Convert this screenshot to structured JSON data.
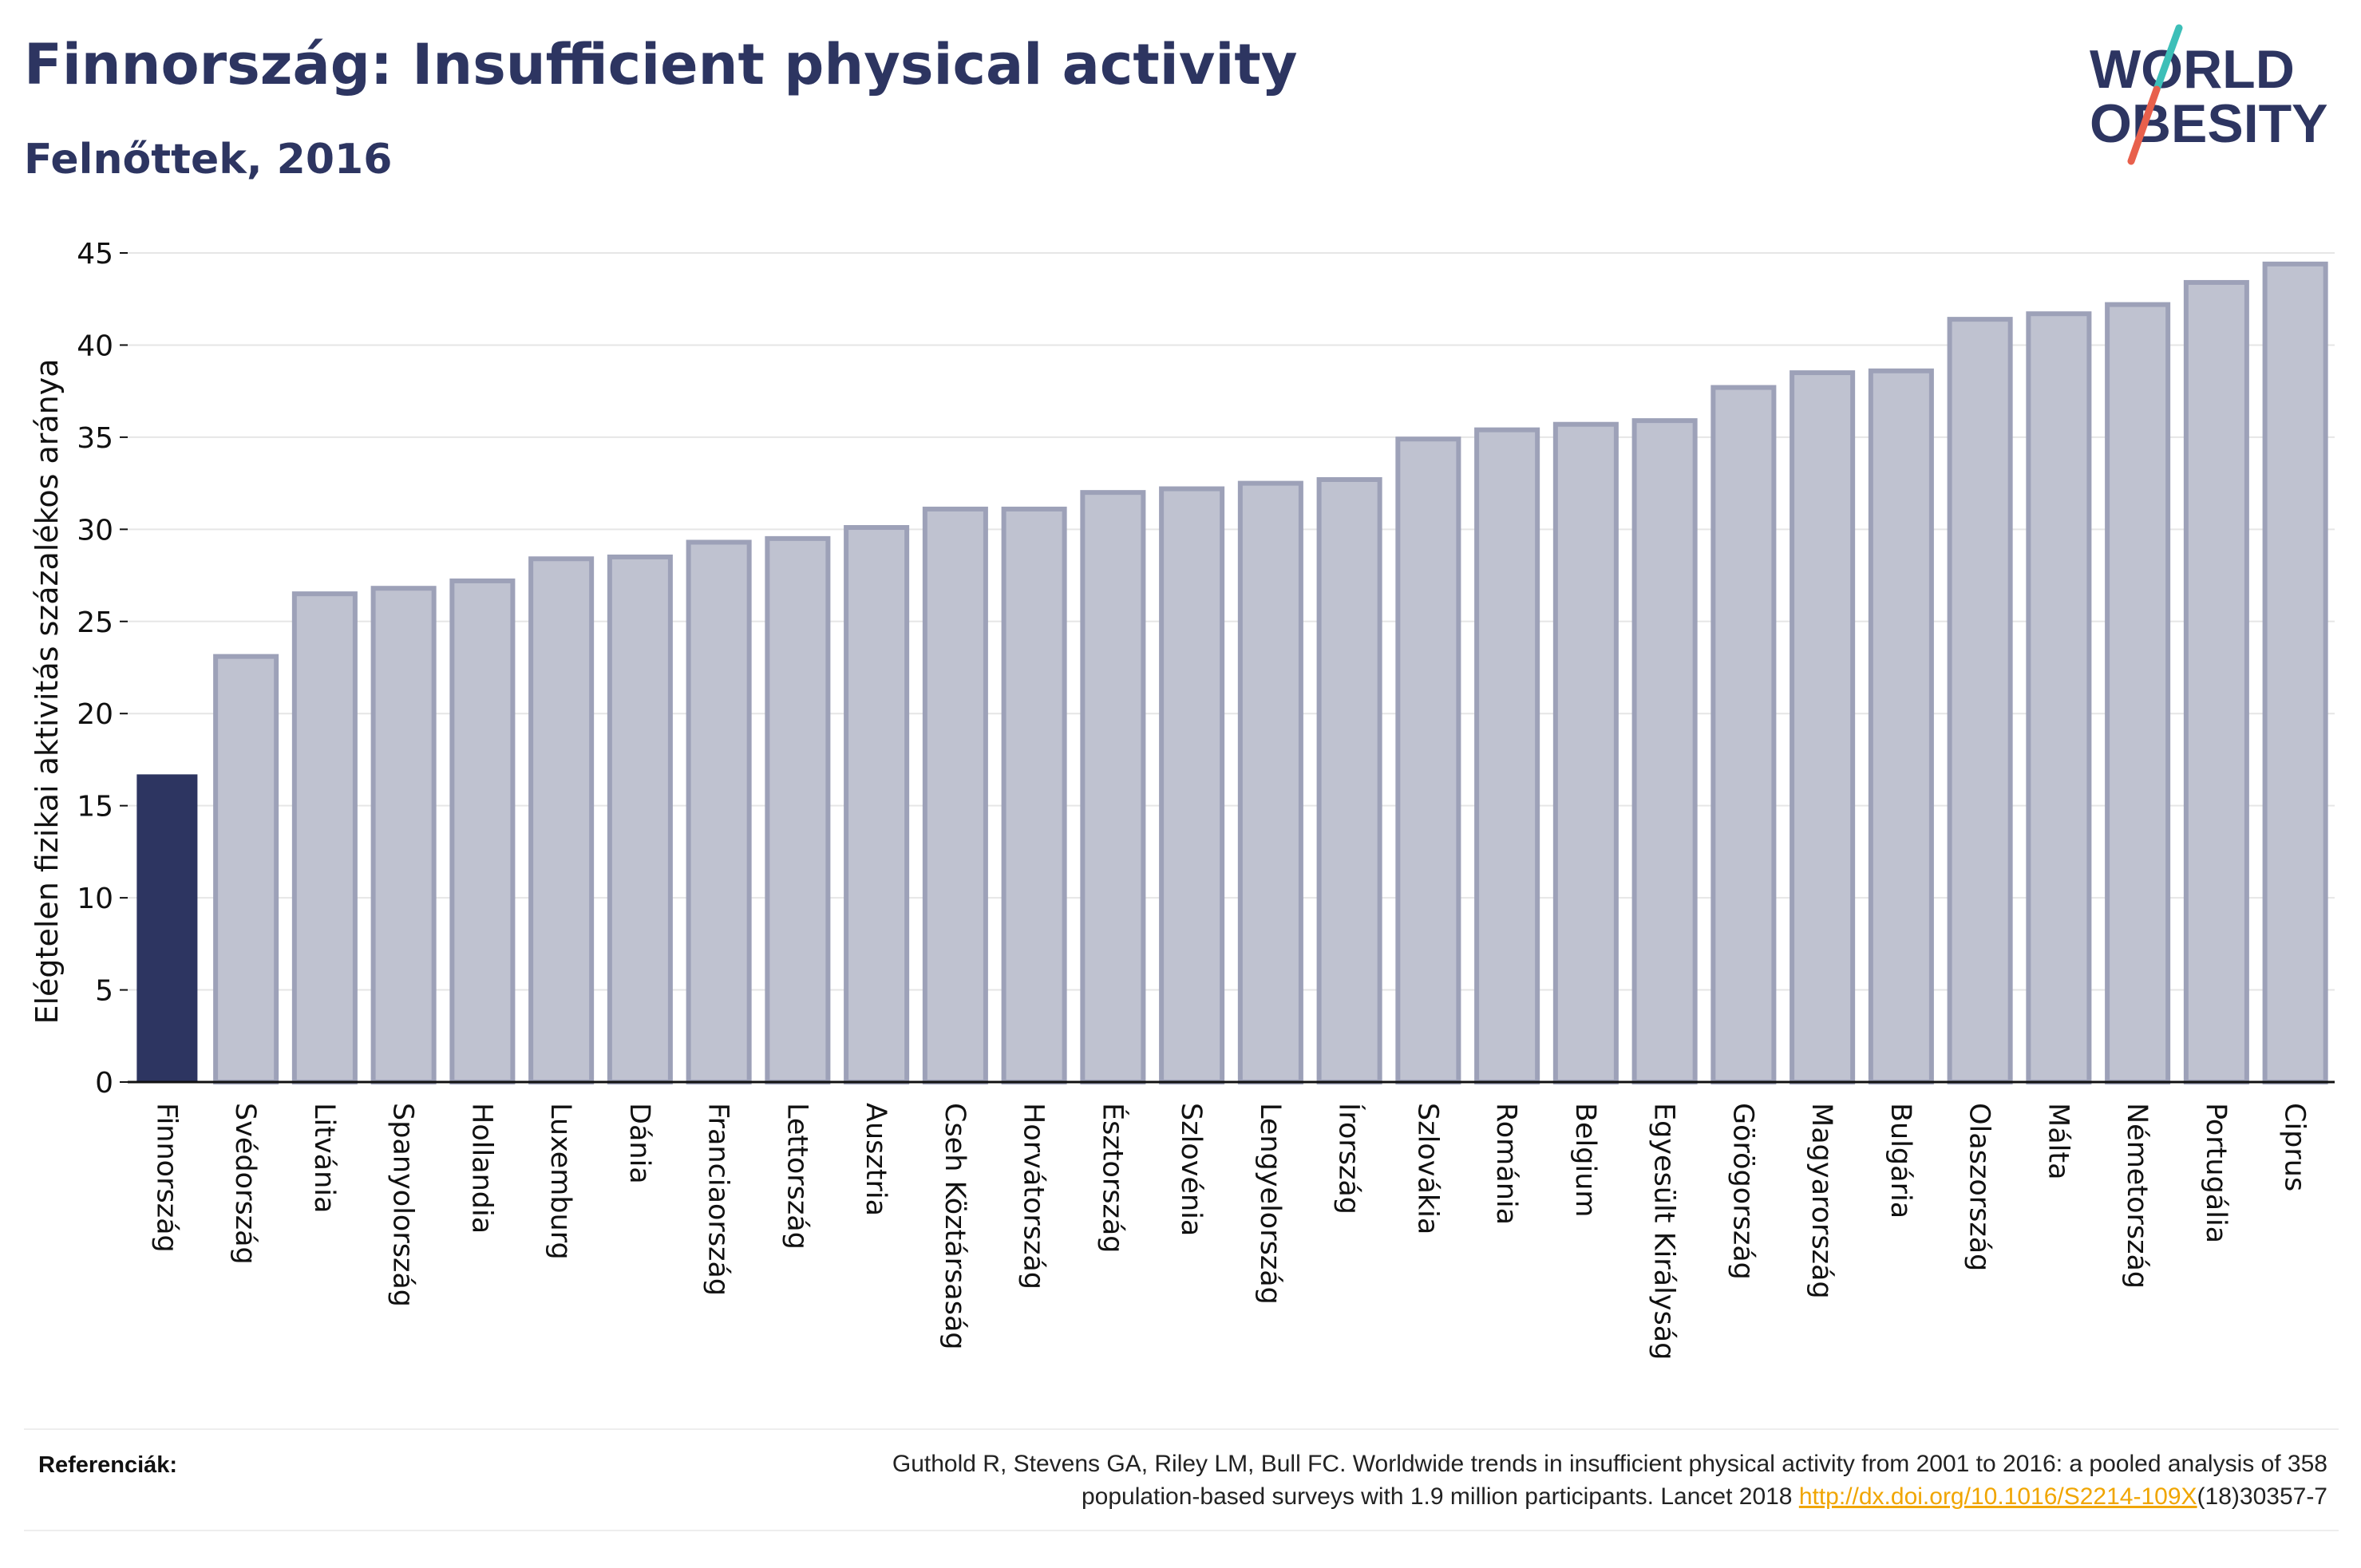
{
  "header": {
    "title": "Finnország: Insufficient physical activity",
    "subtitle": "Felnőttek, 2016"
  },
  "logo": {
    "line1": "WORLD",
    "line2": "OBESITY",
    "colors": {
      "text": "#2d3561",
      "slash_top": "#3dbfb8",
      "slash_bottom": "#e8604c"
    }
  },
  "chart_data": {
    "type": "bar",
    "ylabel": "Elégtelen fizikai aktivitás százalékos aránya",
    "ylim": [
      0,
      45
    ],
    "yticks": [
      0,
      5,
      10,
      15,
      20,
      25,
      30,
      35,
      40,
      45
    ],
    "grid": true,
    "categories": [
      "Finnország",
      "Svédország",
      "Litvánia",
      "Spanyolország",
      "Hollandia",
      "Luxemburg",
      "Dánia",
      "Franciaország",
      "Lettország",
      "Ausztria",
      "Cseh Köztársaság",
      "Horvátország",
      "Észtország",
      "Szlovénia",
      "Lengyelország",
      "Írország",
      "Szlovákia",
      "Románia",
      "Belgium",
      "Egyesült Királyság",
      "Görögország",
      "Magyarország",
      "Bulgária",
      "Olaszország",
      "Málta",
      "Németország",
      "Portugália",
      "Ciprus"
    ],
    "values": [
      16.7,
      23.1,
      26.5,
      26.8,
      27.2,
      28.4,
      28.5,
      29.3,
      29.5,
      30.1,
      31.1,
      31.1,
      32.0,
      32.2,
      32.5,
      32.7,
      34.9,
      35.4,
      35.7,
      35.9,
      37.7,
      38.5,
      38.6,
      41.4,
      41.7,
      42.2,
      43.4,
      44.4
    ],
    "highlight_index": 0,
    "colors": {
      "highlight": "#2d3561",
      "bar_fill": "#bfc2d0",
      "bar_stroke": "#9da1b8"
    }
  },
  "footer": {
    "ref_label": "Referenciák:",
    "ref_text_1": "Guthold R, Stevens GA, Riley LM, Bull FC. Worldwide trends in insufficient physical activity from 2001 to 2016: a pooled analysis of 358",
    "ref_text_2": "population-based surveys with 1.9 million participants. Lancet 2018 ",
    "ref_link": "http://dx.doi.org/10.1016/S2214-109X",
    "ref_text_3": "(18)30357-7"
  }
}
